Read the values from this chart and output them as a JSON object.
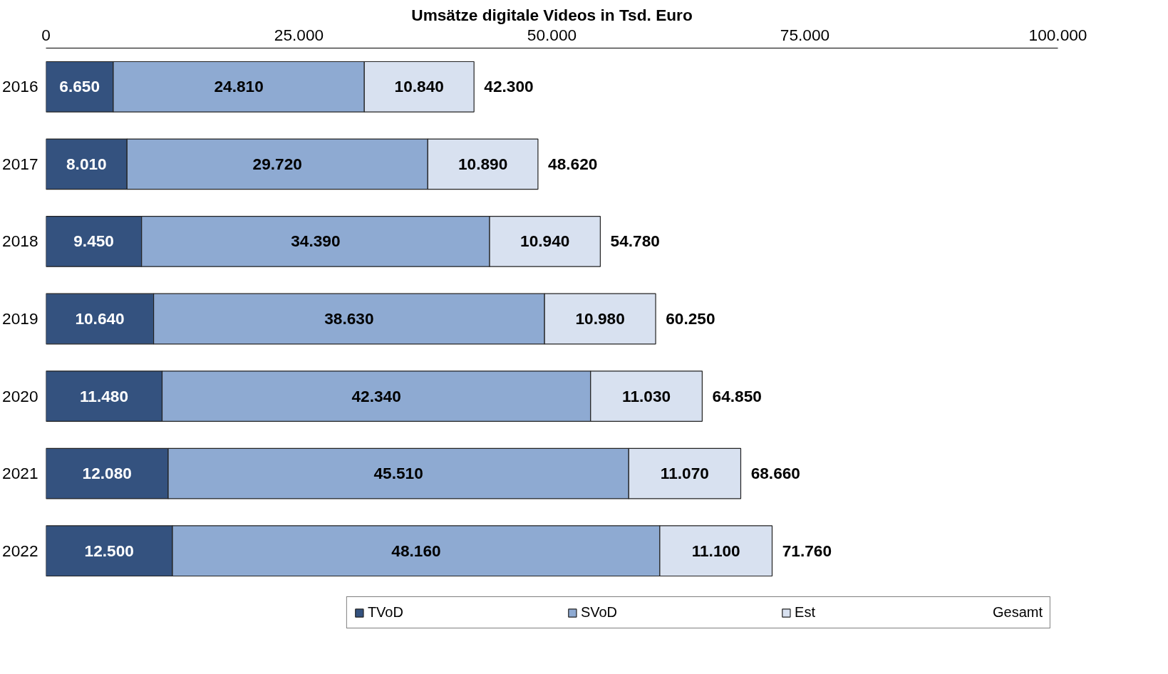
{
  "chart_data": {
    "type": "bar",
    "orientation": "horizontal",
    "stacked": true,
    "title": "Umsätze digitale Videos in Tsd. Euro",
    "categories": [
      "2016",
      "2017",
      "2018",
      "2019",
      "2020",
      "2021",
      "2022"
    ],
    "series": [
      {
        "name": "TVoD",
        "color": "#34527f",
        "values": [
          6650,
          8010,
          9450,
          10640,
          11480,
          12080,
          12500
        ],
        "value_labels": [
          "6.650",
          "8.010",
          "9.450",
          "10.640",
          "11.480",
          "12.080",
          "12.500"
        ]
      },
      {
        "name": "SVoD",
        "color": "#8eaad2",
        "values": [
          24810,
          29720,
          34390,
          38630,
          42340,
          45510,
          48160
        ],
        "value_labels": [
          "24.810",
          "29.720",
          "34.390",
          "38.630",
          "42.340",
          "45.510",
          "48.160"
        ]
      },
      {
        "name": "Est",
        "color": "#d8e1f0",
        "values": [
          10840,
          10890,
          10940,
          10980,
          11030,
          11070,
          11100
        ],
        "value_labels": [
          "10.840",
          "10.890",
          "10.940",
          "10.980",
          "11.030",
          "11.070",
          "11.100"
        ]
      }
    ],
    "totals": [
      "42.300",
      "48.620",
      "54.780",
      "60.250",
      "64.850",
      "68.660",
      "71.760"
    ],
    "annotations": [
      "Gesamt"
    ],
    "xlim": [
      0,
      100000
    ],
    "xticks": [
      0,
      {
        "value": 25000,
        "label": "25.000"
      },
      {
        "value": 50000,
        "label": "50.000"
      },
      {
        "value": 75000,
        "label": "75.000"
      },
      {
        "value": 100000,
        "label": "100.000"
      }
    ],
    "grid": false,
    "legend": "bottom"
  }
}
